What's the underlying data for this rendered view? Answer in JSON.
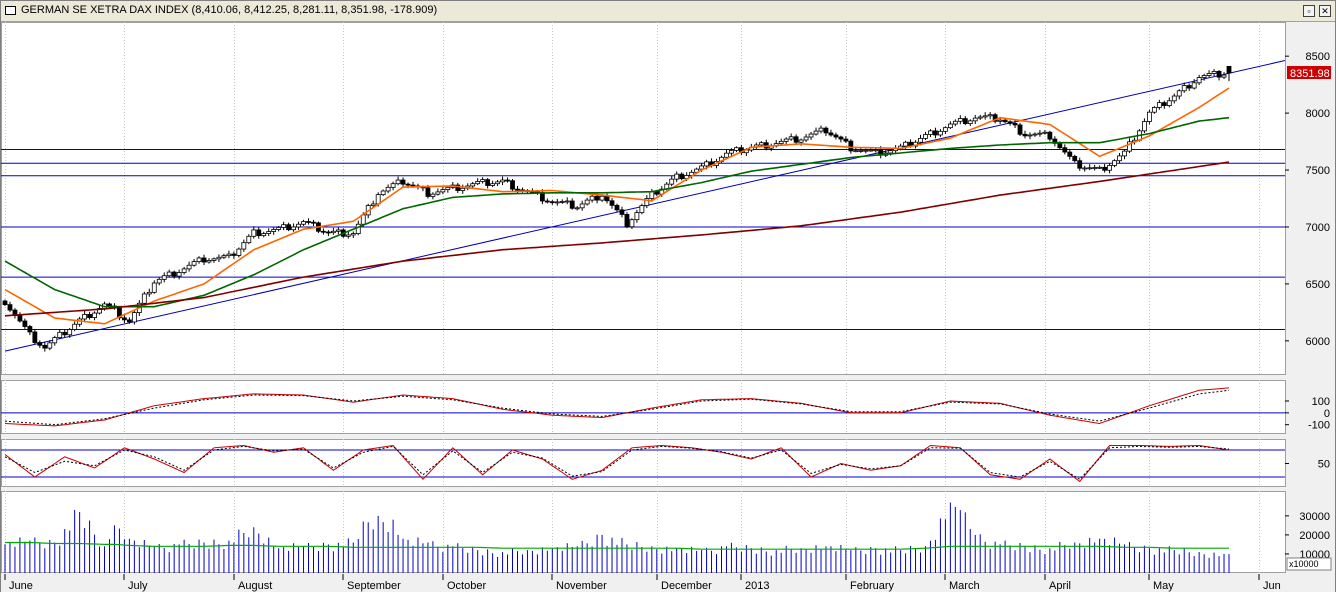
{
  "window": {
    "title": "GERMAN SE XETRA DAX INDEX (8,410.06, 8,412.25, 8,281.11, 8,351.98, -178.909)",
    "last_price_label": "8351.98"
  },
  "colors": {
    "price": "#000000",
    "ma_short": "#ff6600",
    "ma_mid": "#006600",
    "ma_long": "#800000",
    "trendline": "#0000aa",
    "levels": "#0000cc",
    "osc_main": "#cc0000",
    "osc_signal": "#000000",
    "volume": "#0000cc",
    "volume_avg": "#00aa00",
    "last_label_bg": "#cc0000"
  },
  "chart_data": [
    {
      "type": "candlestick",
      "title": "GERMAN SE XETRA DAX INDEX",
      "x_labels": [
        "June",
        "July",
        "August",
        "September",
        "October",
        "November",
        "December",
        "2013",
        "February",
        "March",
        "April",
        "May",
        "Jun"
      ],
      "y_ticks": [
        6000,
        6500,
        7000,
        7500,
        8000,
        8500
      ],
      "ylim": [
        5700,
        8800
      ],
      "horizontal_levels": [
        6100,
        6560,
        7000,
        7450,
        7560,
        7680
      ],
      "trendline": {
        "from": [
          0,
          5910
        ],
        "to": [
          246,
          8350
        ]
      },
      "last": {
        "open": 8410.06,
        "high": 8412.25,
        "low": 8281.11,
        "close": 8351.98,
        "change": -178.909
      },
      "key_closes": {
        "x": [
          0,
          5,
          8,
          15,
          20,
          25,
          30,
          40,
          45,
          50,
          55,
          60,
          65,
          70,
          75,
          80,
          85,
          90,
          95,
          100,
          105,
          110,
          115,
          120,
          125,
          130,
          135,
          140,
          145,
          150,
          155,
          160,
          165,
          170,
          175,
          180,
          185,
          190,
          195,
          200,
          205,
          210,
          215,
          220,
          225,
          230,
          235,
          240,
          245
        ],
        "values": [
          6350,
          6050,
          5940,
          6180,
          6320,
          6170,
          6520,
          6720,
          6730,
          6950,
          6980,
          7040,
          6950,
          6950,
          7300,
          7400,
          7300,
          7340,
          7380,
          7400,
          7310,
          7220,
          7180,
          7290,
          7030,
          7280,
          7440,
          7520,
          7640,
          7700,
          7740,
          7780,
          7850,
          7700,
          7650,
          7690,
          7800,
          7900,
          7960,
          7950,
          7820,
          7800,
          7550,
          7500,
          7650,
          8000,
          8150,
          8320,
          8350
        ]
      },
      "ma_short": {
        "x": [
          0,
          10,
          20,
          30,
          40,
          50,
          60,
          70,
          80,
          90,
          100,
          110,
          120,
          130,
          140,
          150,
          160,
          170,
          180,
          190,
          200,
          210,
          220,
          230,
          240,
          246
        ],
        "values": [
          6450,
          6200,
          6150,
          6350,
          6500,
          6800,
          6980,
          7050,
          7350,
          7360,
          7310,
          7320,
          7280,
          7230,
          7500,
          7700,
          7730,
          7700,
          7690,
          7780,
          7960,
          7900,
          7620,
          7800,
          8050,
          8220
        ]
      },
      "ma_mid": {
        "x": [
          0,
          10,
          20,
          30,
          40,
          50,
          60,
          70,
          80,
          90,
          100,
          110,
          120,
          130,
          140,
          150,
          160,
          170,
          180,
          190,
          200,
          210,
          220,
          230,
          240,
          246
        ],
        "values": [
          6700,
          6450,
          6300,
          6300,
          6400,
          6580,
          6800,
          6980,
          7160,
          7260,
          7290,
          7300,
          7300,
          7310,
          7390,
          7490,
          7550,
          7610,
          7650,
          7690,
          7720,
          7740,
          7740,
          7820,
          7930,
          7960
        ]
      },
      "ma_long": {
        "x": [
          0,
          20,
          40,
          60,
          80,
          100,
          120,
          140,
          160,
          180,
          200,
          220,
          246
        ],
        "values": [
          6220,
          6280,
          6380,
          6560,
          6700,
          6800,
          6860,
          6930,
          7010,
          7130,
          7280,
          7400,
          7570
        ]
      }
    },
    {
      "type": "line",
      "panel": "oscillator-1",
      "y_ticks": [
        100,
        0,
        -100
      ],
      "ylim": [
        -170,
        260
      ],
      "x": [
        0,
        10,
        20,
        30,
        40,
        50,
        60,
        70,
        80,
        90,
        100,
        110,
        120,
        130,
        140,
        150,
        160,
        170,
        180,
        190,
        200,
        210,
        220,
        230,
        240,
        246
      ],
      "series": [
        {
          "values": [
            -90,
            -110,
            -60,
            60,
            120,
            160,
            150,
            90,
            150,
            120,
            30,
            -20,
            -40,
            40,
            110,
            120,
            80,
            0,
            0,
            100,
            80,
            -20,
            -90,
            60,
            190,
            210
          ]
        },
        {
          "values": [
            -70,
            -100,
            -50,
            40,
            110,
            150,
            145,
            100,
            140,
            110,
            40,
            -10,
            -30,
            30,
            100,
            115,
            75,
            10,
            10,
            90,
            75,
            -10,
            -70,
            40,
            160,
            190
          ]
        }
      ]
    },
    {
      "type": "line",
      "panel": "oscillator-2",
      "y_ticks": [
        50
      ],
      "ylim": [
        0,
        100
      ],
      "levels": [
        20,
        80
      ],
      "x": [
        0,
        6,
        12,
        18,
        24,
        30,
        36,
        42,
        48,
        54,
        60,
        66,
        72,
        78,
        84,
        90,
        96,
        102,
        108,
        114,
        120,
        126,
        132,
        138,
        144,
        150,
        156,
        162,
        168,
        174,
        180,
        186,
        192,
        198,
        204,
        210,
        216,
        222,
        228,
        234,
        240,
        246
      ],
      "series": [
        {
          "values": [
            70,
            20,
            65,
            40,
            85,
            60,
            30,
            85,
            90,
            75,
            85,
            35,
            80,
            90,
            15,
            85,
            25,
            80,
            60,
            15,
            35,
            85,
            90,
            85,
            75,
            60,
            85,
            20,
            50,
            35,
            45,
            90,
            85,
            25,
            15,
            60,
            10,
            90,
            90,
            88,
            90,
            80
          ]
        },
        {
          "values": [
            65,
            30,
            55,
            45,
            80,
            65,
            35,
            80,
            88,
            78,
            82,
            40,
            75,
            88,
            25,
            78,
            30,
            75,
            62,
            22,
            32,
            80,
            88,
            84,
            76,
            62,
            80,
            28,
            48,
            38,
            45,
            85,
            84,
            30,
            20,
            55,
            15,
            85,
            88,
            86,
            88,
            82
          ]
        }
      ]
    },
    {
      "type": "bar",
      "panel": "volume",
      "unit_label": "x10000",
      "y_ticks": [
        30000,
        20000,
        10000
      ],
      "ylim": [
        0,
        42000
      ],
      "x": [
        0,
        5,
        10,
        15,
        20,
        22,
        25,
        30,
        35,
        40,
        45,
        50,
        55,
        60,
        65,
        70,
        72,
        75,
        78,
        80,
        85,
        90,
        95,
        100,
        105,
        110,
        115,
        120,
        125,
        130,
        135,
        140,
        145,
        150,
        155,
        160,
        165,
        170,
        175,
        180,
        185,
        190,
        192,
        195,
        200,
        205,
        210,
        215,
        220,
        225,
        230,
        235,
        240,
        245
      ],
      "values": [
        15000,
        17000,
        16000,
        32000,
        14000,
        25000,
        18000,
        14000,
        15000,
        16000,
        17000,
        24000,
        13000,
        14000,
        15000,
        16000,
        27000,
        30000,
        28000,
        18000,
        16000,
        14000,
        12000,
        11000,
        12000,
        13000,
        14000,
        20000,
        15000,
        14000,
        13000,
        12000,
        14000,
        13000,
        12000,
        13000,
        14000,
        12000,
        13000,
        12000,
        14000,
        37000,
        33000,
        20000,
        15000,
        14000,
        13000,
        16000,
        18000,
        15000,
        13000,
        12000,
        11000,
        10000
      ],
      "average": [
        16000,
        16000,
        15500,
        15500,
        15000,
        15000,
        14500,
        14000,
        14000,
        14000,
        14500,
        14500,
        14000,
        14000,
        14000,
        13500,
        13500,
        13500,
        13500,
        13500,
        13500,
        13500,
        13500,
        13000,
        13000,
        13000,
        13000,
        13000,
        13000,
        13000,
        13000,
        12500,
        12500,
        12500,
        12500,
        12500,
        12500,
        12500,
        12500,
        12500,
        13000,
        14000,
        14000,
        14000,
        14000,
        14000,
        14000,
        14000,
        14000,
        13500,
        13500,
        13000,
        13000,
        13000
      ]
    }
  ]
}
